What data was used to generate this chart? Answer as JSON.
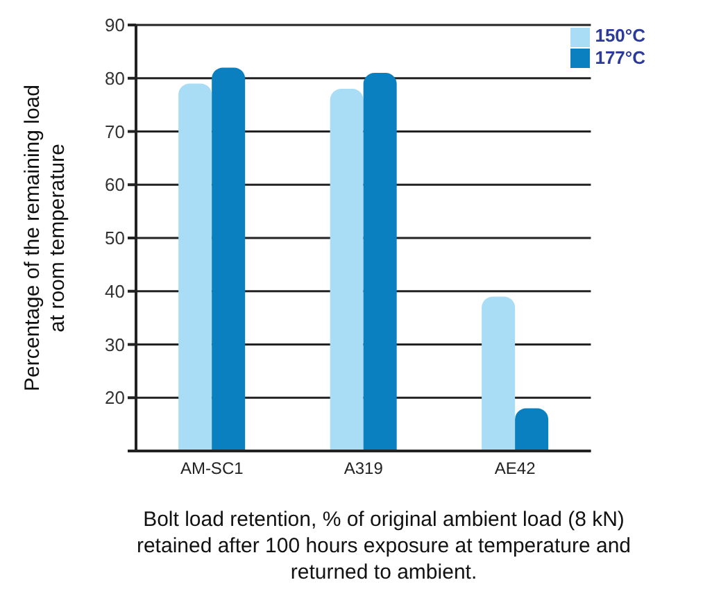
{
  "chart_data": {
    "type": "bar",
    "ylabel": "Percentage of the remaining load\nat room temperature",
    "xlabel": "Bolt load retention, % of original ambient load (8 kN)\nretained after 100 hours exposure at temperature and\nreturned to ambient.",
    "categories": [
      "AM-SC1",
      "A319",
      "AE42"
    ],
    "series": [
      {
        "name": "150°C",
        "color": "#a9dcf5",
        "values": [
          79,
          78,
          39
        ]
      },
      {
        "name": "177°C",
        "color": "#0a80c0",
        "values": [
          82,
          81,
          18
        ]
      }
    ],
    "ylim": [
      10,
      90
    ],
    "yticks": [
      {
        "value": 10,
        "label": null
      },
      20,
      30,
      40,
      50,
      60,
      70,
      80,
      90
    ],
    "grid": "y",
    "legend": "top right"
  }
}
